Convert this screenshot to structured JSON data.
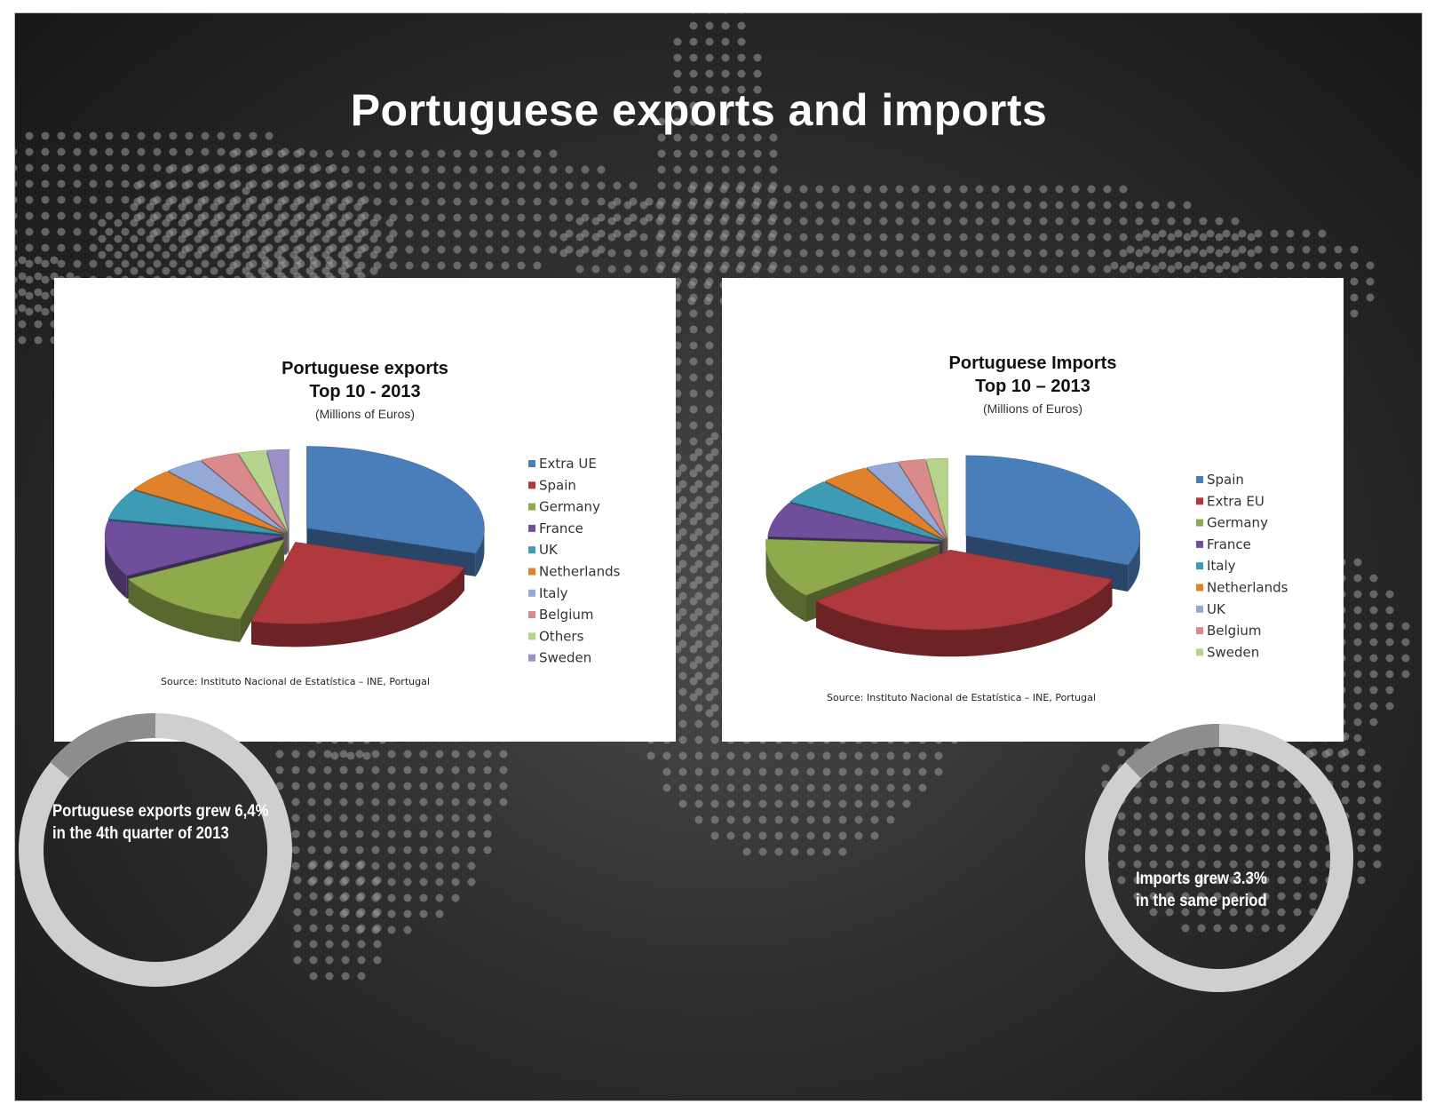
{
  "page": {
    "title": "Portuguese exports and imports",
    "callouts": {
      "exports": [
        "Portuguese exports grew 6,4%",
        "in the 4th quarter of 2013"
      ],
      "imports": [
        "Imports grew 3.3%",
        "in the same period"
      ]
    }
  },
  "colors": {
    "blue": "#4a7ebb",
    "red": "#b0393d",
    "green": "#8eaa4c",
    "purple": "#6f4f9c",
    "teal": "#3d9bb5",
    "orange": "#e2812b",
    "lightblue": "#93a9d6",
    "pink": "#d98b8b",
    "lightgreen": "#b5d38a",
    "lavender": "#9c90c6"
  },
  "chart_data": [
    {
      "type": "pie",
      "title": "Portuguese exports",
      "subtitle": "Top 10 - 2013",
      "unit": "(Millions of Euros)",
      "source": "Source: Instituto Nacional de Estatística – INE, Portugal",
      "legend_position": "right",
      "slices": [
        {
          "label": "Extra UE",
          "value": 30,
          "color": "#4a7ebb"
        },
        {
          "label": "Spain",
          "value": 24,
          "color": "#b0393d"
        },
        {
          "label": "Germany",
          "value": 13,
          "color": "#8eaa4c"
        },
        {
          "label": "France",
          "value": 11,
          "color": "#6f4f9c"
        },
        {
          "label": "UK",
          "value": 6,
          "color": "#3d9bb5"
        },
        {
          "label": "Netherlands",
          "value": 4.5,
          "color": "#e2812b"
        },
        {
          "label": "Italy",
          "value": 3.5,
          "color": "#93a9d6"
        },
        {
          "label": "Belgium",
          "value": 3.5,
          "color": "#d98b8b"
        },
        {
          "label": "Others",
          "value": 2.5,
          "color": "#b5d38a"
        },
        {
          "label": "Sweden",
          "value": 2,
          "color": "#9c90c6"
        }
      ]
    },
    {
      "type": "pie",
      "title": "Portuguese Imports",
      "subtitle": "Top 10 – 2013",
      "unit": "(Millions of Euros)",
      "source": "Source: Instituto Nacional de Estatística – INE, Portugal",
      "legend_position": "right",
      "slices": [
        {
          "label": "Spain",
          "value": 31,
          "color": "#4a7ebb"
        },
        {
          "label": "Extra EU",
          "value": 33,
          "color": "#b0393d"
        },
        {
          "label": "Germany",
          "value": 12,
          "color": "#8eaa4c"
        },
        {
          "label": "France",
          "value": 7,
          "color": "#6f4f9c"
        },
        {
          "label": "Italy",
          "value": 5,
          "color": "#3d9bb5"
        },
        {
          "label": "Netherlands",
          "value": 4.5,
          "color": "#e2812b"
        },
        {
          "label": "UK",
          "value": 3,
          "color": "#93a9d6"
        },
        {
          "label": "Belgium",
          "value": 2.5,
          "color": "#d98b8b"
        },
        {
          "label": "Sweden",
          "value": 2,
          "color": "#b5d38a"
        }
      ]
    }
  ]
}
